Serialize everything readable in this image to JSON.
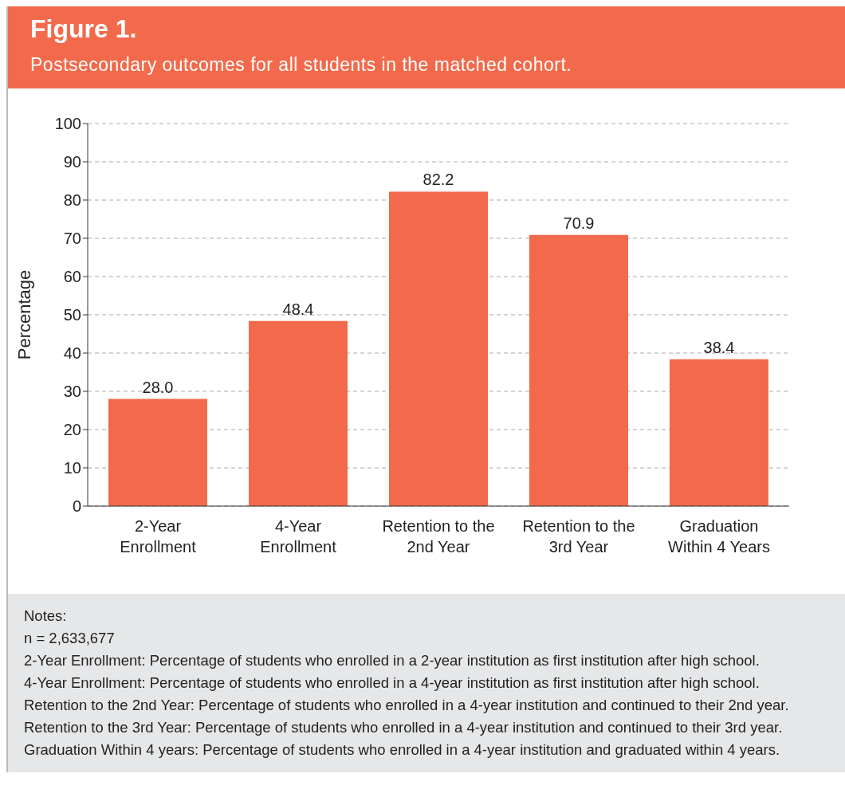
{
  "chart_data": {
    "type": "bar",
    "title": "Figure 1.",
    "subtitle": "Postsecondary outcomes for all students in the matched cohort.",
    "ylabel": "Percentage",
    "categories": [
      "2-Year Enrollment",
      "4-Year Enrollment",
      "Retention to the 2nd Year",
      "Retention to the 3rd Year",
      "Graduation Within 4 Years"
    ],
    "values": [
      28.0,
      48.4,
      82.2,
      70.9,
      38.4
    ],
    "value_labels": [
      "28.0",
      "48.4",
      "82.2",
      "70.9",
      "38.4"
    ],
    "color": "#f26a4b",
    "ylim": [
      0,
      100
    ],
    "yticks": [
      0,
      10,
      20,
      30,
      40,
      50,
      60,
      70,
      80,
      90,
      100
    ],
    "grid": "y",
    "legend": false,
    "annotations": [
      "Notes:",
      "n = 2,633,677",
      "2-Year Enrollment: Percentage of students who enrolled in a 2-year institution as first institution after high school.",
      "4-Year Enrollment: Percentage of students who enrolled in a 4-year institution as first institution after high school.",
      "Retention to the 2nd Year: Percentage of students who enrolled in a 4-year institution and continued to their 2nd year.",
      "Retention to the 3rd Year: Percentage of students who enrolled in a 4-year institution and continued to their 3rd year.",
      "Graduation Within 4 years: Percentage of students who enrolled in a 4-year institution and graduated within 4 years."
    ]
  }
}
